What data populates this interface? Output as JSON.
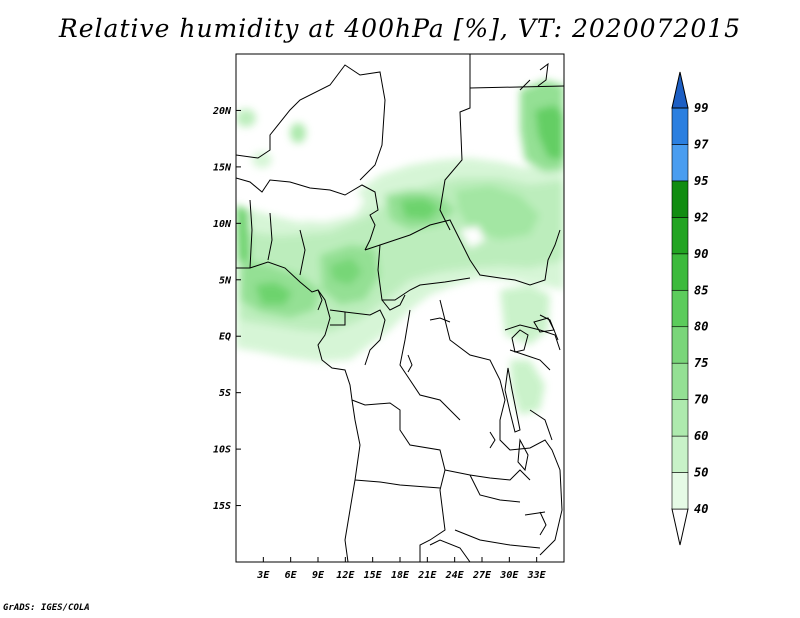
{
  "title": "Relative humidity at 400hPa [%], VT: 2020072015",
  "credit": "GrADS: IGES/COLA",
  "map": {
    "lon_range": [
      0,
      36
    ],
    "lat_range": [
      -20,
      25
    ],
    "lat_ticks": [
      {
        "value": 20,
        "label": "20N"
      },
      {
        "value": 15,
        "label": "15N"
      },
      {
        "value": 10,
        "label": "10N"
      },
      {
        "value": 5,
        "label": "5N"
      },
      {
        "value": 0,
        "label": "EQ"
      },
      {
        "value": -5,
        "label": "5S"
      },
      {
        "value": -10,
        "label": "10S"
      },
      {
        "value": -15,
        "label": "15S"
      }
    ],
    "lon_ticks": [
      {
        "value": 3,
        "label": "3E"
      },
      {
        "value": 6,
        "label": "6E"
      },
      {
        "value": 9,
        "label": "9E"
      },
      {
        "value": 12,
        "label": "12E"
      },
      {
        "value": 15,
        "label": "15E"
      },
      {
        "value": 18,
        "label": "18E"
      },
      {
        "value": 21,
        "label": "21E"
      },
      {
        "value": 24,
        "label": "24E"
      },
      {
        "value": 27,
        "label": "27E"
      },
      {
        "value": 30,
        "label": "30E"
      },
      {
        "value": 33,
        "label": "33E"
      }
    ]
  },
  "colorbar": {
    "levels": [
      "40",
      "50",
      "60",
      "70",
      "75",
      "80",
      "85",
      "90",
      "92",
      "95",
      "97",
      "99"
    ],
    "colors": [
      "#ffffff",
      "#e6fae6",
      "#c8f2c8",
      "#aeeaae",
      "#94e094",
      "#7ad67a",
      "#5ccc5c",
      "#3cba3c",
      "#22a422",
      "#118c11",
      "#4a9df0",
      "#2b7fe0",
      "#1d5fc4"
    ]
  }
}
